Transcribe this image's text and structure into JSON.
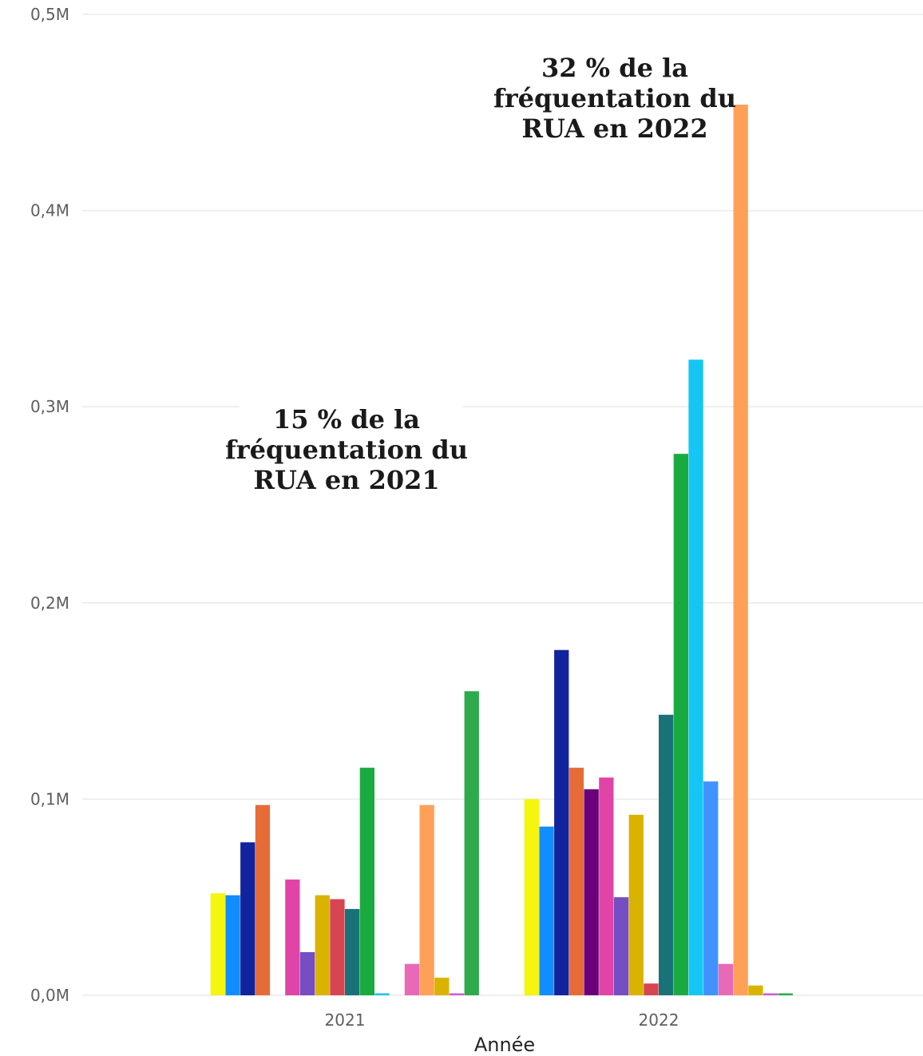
{
  "chart_data": {
    "type": "bar",
    "xlabel": "Année",
    "ylabel": "",
    "categories": [
      "2021",
      "2022"
    ],
    "ylim": [
      0,
      0.5
    ],
    "yticks": [
      "0,0M",
      "0,1M",
      "0,2M",
      "0,3M",
      "0,4M",
      "0,5M"
    ],
    "grid": true,
    "series": [
      {
        "color": "#F5F50E",
        "values": [
          0.052,
          0.1
        ]
      },
      {
        "color": "#118DFF",
        "values": [
          0.051,
          0.086
        ]
      },
      {
        "color": "#12239E",
        "values": [
          0.078,
          0.176
        ]
      },
      {
        "color": "#E66C37",
        "values": [
          0.097,
          0.116
        ]
      },
      {
        "color": "#6B007B",
        "values": [
          0,
          0.105
        ]
      },
      {
        "color": "#E044A7",
        "values": [
          0.059,
          0.111
        ]
      },
      {
        "color": "#744EC2",
        "values": [
          0.022,
          0.05
        ]
      },
      {
        "color": "#D9B300",
        "values": [
          0.051,
          0.092
        ]
      },
      {
        "color": "#D64550",
        "values": [
          0.049,
          0.006
        ]
      },
      {
        "color": "#197278",
        "values": [
          0.044,
          0.143
        ]
      },
      {
        "color": "#1AAB40",
        "values": [
          0.116,
          0.276
        ]
      },
      {
        "color": "#15C6F4",
        "values": [
          0.001,
          0.324
        ]
      },
      {
        "color": "#4092FF",
        "values": [
          0,
          0.109
        ]
      },
      {
        "color": "#E869B8",
        "values": [
          0.016,
          0.016
        ]
      },
      {
        "color": "#FFA058",
        "values": [
          0.097,
          0.454
        ]
      },
      {
        "color": "#D9B300",
        "values": [
          0.009,
          0.005
        ]
      },
      {
        "color": "#CC5BD6",
        "values": [
          0.001,
          0.001
        ]
      },
      {
        "color": "#2EAA4D",
        "values": [
          0.155,
          0.001
        ]
      }
    ],
    "annotations": [
      {
        "lines": [
          "15 % de la",
          "fréquentation du",
          "RUA en 2021"
        ]
      },
      {
        "lines": [
          "32 % de la",
          "fréquentation du",
          "RUA en 2022"
        ]
      }
    ]
  }
}
